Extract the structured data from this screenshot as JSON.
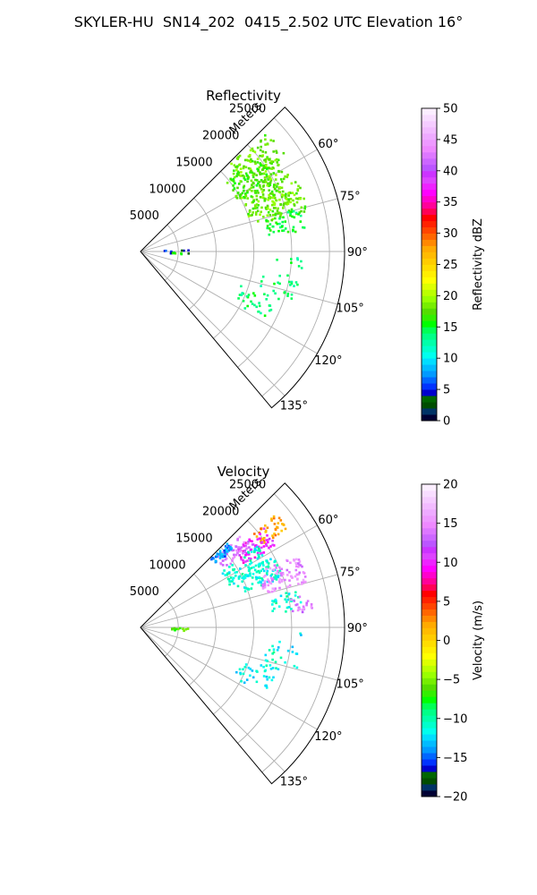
{
  "figure": {
    "title": "SKYLER-HU  SN14_202  0415_2.502 UTC Elevation 16°"
  },
  "chart_data": [
    {
      "type": "polar-sector",
      "title": "Reflectivity",
      "range_unit_label": "Meters",
      "range_ticks": [
        5000,
        10000,
        15000,
        20000,
        25000
      ],
      "range_tick_labels": [
        "5000",
        "10000",
        "15000",
        "20000",
        "25000"
      ],
      "rmax": 27000,
      "azimuth_ticks": [
        60,
        75,
        90,
        105,
        120,
        135
      ],
      "azimuth_tick_labels": [
        "60°",
        "75°",
        "90°",
        "105°",
        "120°",
        "135°"
      ],
      "azimuth_range_deg": [
        45,
        140
      ],
      "grid": true,
      "colorbar": {
        "label": "Reflectivity dBZ",
        "min": 0,
        "max": 50,
        "ticks": [
          0,
          5,
          10,
          15,
          20,
          25,
          30,
          35,
          40,
          45,
          50
        ],
        "tick_labels": [
          "0",
          "5",
          "10",
          "15",
          "20",
          "25",
          "30",
          "35",
          "40",
          "45",
          "50"
        ],
        "colors": [
          "#000033",
          "#003366",
          "#004d00",
          "#006600",
          "#0000cc",
          "#0033ff",
          "#0066ff",
          "#0099ff",
          "#00bbff",
          "#00ddff",
          "#00ffee",
          "#00ffcc",
          "#00ffaa",
          "#00ff88",
          "#00ff55",
          "#00ff00",
          "#33ee00",
          "#55dd00",
          "#77ee00",
          "#99ff00",
          "#bbff00",
          "#ddff00",
          "#ffff00",
          "#ffee00",
          "#ffdd00",
          "#ffcc00",
          "#ffbb00",
          "#ffaa00",
          "#ff8800",
          "#ff6600",
          "#ff4400",
          "#ff2200",
          "#ff0000",
          "#ff0055",
          "#ff0099",
          "#ff00cc",
          "#ff00ff",
          "#ee22ff",
          "#dd44ff",
          "#cc33ff",
          "#bb55ff",
          "#cc66ff",
          "#dd77ff",
          "#ee88ff",
          "#ee99ff",
          "#eeaaff",
          "#f2bbff",
          "#f5ccff",
          "#f8ddff",
          "#fbeeff"
        ]
      },
      "echoes": [
        {
          "az": 52,
          "r": 19500,
          "dr": 3500,
          "daz": 6,
          "n": 110,
          "value": 18
        },
        {
          "az": 57,
          "r": 17500,
          "dr": 3000,
          "daz": 6,
          "n": 80,
          "value": 17
        },
        {
          "az": 66,
          "r": 18500,
          "dr": 3500,
          "daz": 7,
          "n": 120,
          "value": 18
        },
        {
          "az": 71,
          "r": 19500,
          "dr": 3500,
          "daz": 6,
          "n": 90,
          "value": 18
        },
        {
          "az": 79,
          "r": 19500,
          "dr": 2500,
          "daz": 4,
          "n": 45,
          "value": 15
        },
        {
          "az": 96,
          "r": 19500,
          "dr": 2000,
          "daz": 4,
          "n": 8,
          "value": 14
        },
        {
          "az": 104,
          "r": 19000,
          "dr": 2500,
          "daz": 5,
          "n": 25,
          "value": 14
        },
        {
          "az": 114,
          "r": 16500,
          "dr": 2500,
          "daz": 5,
          "n": 30,
          "value": 14
        },
        {
          "az": 91,
          "r": 4800,
          "dr": 2000,
          "daz": 3,
          "n": 12,
          "value": 5
        },
        {
          "az": 93,
          "r": 4900,
          "dr": 600,
          "daz": 1,
          "n": 5,
          "value": 17
        }
      ]
    },
    {
      "type": "polar-sector",
      "title": "Velocity",
      "range_unit_label": "Meters",
      "range_ticks": [
        5000,
        10000,
        15000,
        20000,
        25000
      ],
      "range_tick_labels": [
        "5000",
        "10000",
        "15000",
        "20000",
        "25000"
      ],
      "rmax": 27000,
      "azimuth_ticks": [
        60,
        75,
        90,
        105,
        120,
        135
      ],
      "azimuth_tick_labels": [
        "60°",
        "75°",
        "90°",
        "105°",
        "120°",
        "135°"
      ],
      "azimuth_range_deg": [
        45,
        140
      ],
      "grid": true,
      "colorbar": {
        "label": "Velocity (m/s)",
        "min": -20,
        "max": 20,
        "ticks": [
          -20,
          -15,
          -10,
          -5,
          0,
          5,
          10,
          15,
          20
        ],
        "tick_labels": [
          "−20",
          "−15",
          "−10",
          "−5",
          "0",
          "5",
          "10",
          "15",
          "20"
        ],
        "colors": [
          "#000033",
          "#003366",
          "#004d00",
          "#006600",
          "#0000cc",
          "#0033ff",
          "#0066ff",
          "#0099ff",
          "#00bbff",
          "#00ddff",
          "#00ffee",
          "#00ffcc",
          "#00ffaa",
          "#00ff88",
          "#00ff55",
          "#00ff00",
          "#33ee00",
          "#55dd00",
          "#77ee00",
          "#99ff00",
          "#bbff00",
          "#ddff00",
          "#ffff00",
          "#ffee00",
          "#ffdd00",
          "#ffcc00",
          "#ffbb00",
          "#ffaa00",
          "#ff8800",
          "#ff6600",
          "#ff4400",
          "#ff2200",
          "#ff0000",
          "#ff0055",
          "#ff0099",
          "#ff00cc",
          "#ff00ff",
          "#ee22ff",
          "#dd44ff",
          "#cc33ff",
          "#bb55ff",
          "#cc66ff",
          "#dd77ff",
          "#ee88ff",
          "#ee99ff",
          "#eeaaff",
          "#f2bbff",
          "#f5ccff",
          "#f8ddff",
          "#fbeeff"
        ]
      },
      "echoes": [
        {
          "az": 53,
          "r": 21500,
          "dr": 2000,
          "daz": 3,
          "n": 40,
          "value": 2
        },
        {
          "az": 55,
          "r": 18500,
          "dr": 2500,
          "daz": 4,
          "n": 60,
          "value": 10
        },
        {
          "az": 51,
          "r": 16000,
          "dr": 2500,
          "daz": 4,
          "n": 50,
          "value": 14
        },
        {
          "az": 48,
          "r": 14500,
          "dr": 1500,
          "daz": 2,
          "n": 40,
          "value": -14
        },
        {
          "az": 60,
          "r": 16000,
          "dr": 3000,
          "daz": 5,
          "n": 70,
          "value": -11
        },
        {
          "az": 66,
          "r": 17000,
          "dr": 3000,
          "daz": 5,
          "n": 80,
          "value": -11
        },
        {
          "az": 70,
          "r": 20000,
          "dr": 3000,
          "daz": 5,
          "n": 90,
          "value": 15
        },
        {
          "az": 80,
          "r": 19500,
          "dr": 2000,
          "daz": 4,
          "n": 30,
          "value": -11
        },
        {
          "az": 82,
          "r": 21500,
          "dr": 1500,
          "daz": 3,
          "n": 20,
          "value": 14
        },
        {
          "az": 96,
          "r": 19500,
          "dr": 2000,
          "daz": 4,
          "n": 8,
          "value": -12
        },
        {
          "az": 104,
          "r": 19000,
          "dr": 2500,
          "daz": 5,
          "n": 25,
          "value": -11
        },
        {
          "az": 114,
          "r": 16500,
          "dr": 2500,
          "daz": 5,
          "n": 30,
          "value": -12
        },
        {
          "az": 93,
          "r": 4900,
          "dr": 1500,
          "daz": 2,
          "n": 12,
          "value": -6
        }
      ]
    }
  ]
}
